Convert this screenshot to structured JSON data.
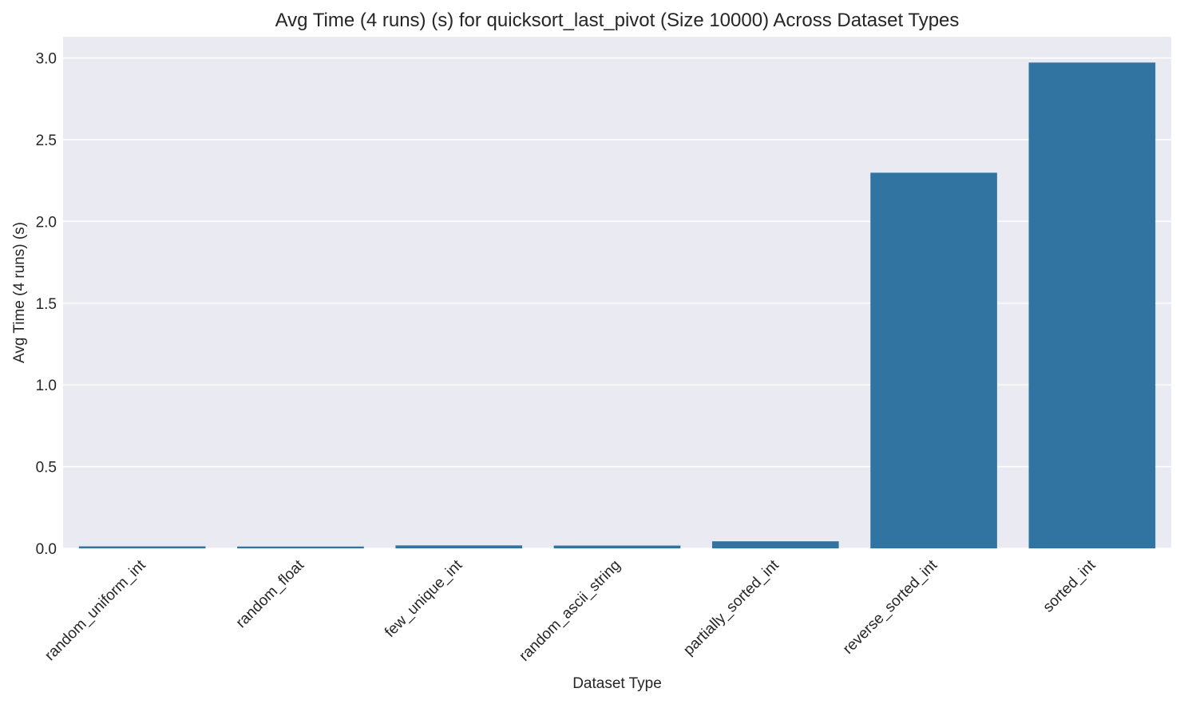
{
  "chart_data": {
    "type": "bar",
    "title": "Avg Time (4 runs) (s) for quicksort_last_pivot (Size 10000) Across Dataset Types",
    "xlabel": "Dataset Type",
    "ylabel": "Avg Time (4 runs) (s)",
    "categories": [
      "random_uniform_int",
      "random_float",
      "few_unique_int",
      "random_ascii_string",
      "partially_sorted_int",
      "reverse_sorted_int",
      "sorted_int"
    ],
    "values": [
      0.012,
      0.011,
      0.018,
      0.017,
      0.043,
      2.298,
      2.972
    ],
    "ylim": [
      0,
      3.13
    ],
    "yticks": [
      0.0,
      0.5,
      1.0,
      1.5,
      2.0,
      2.5,
      3.0
    ],
    "ytick_labels": [
      "0.0",
      "0.5",
      "1.0",
      "1.5",
      "2.0",
      "2.5",
      "3.0"
    ],
    "grid": true,
    "bar_color": "#3274a1",
    "background_color": "#eaeaf2",
    "grid_color": "#ffffff"
  }
}
